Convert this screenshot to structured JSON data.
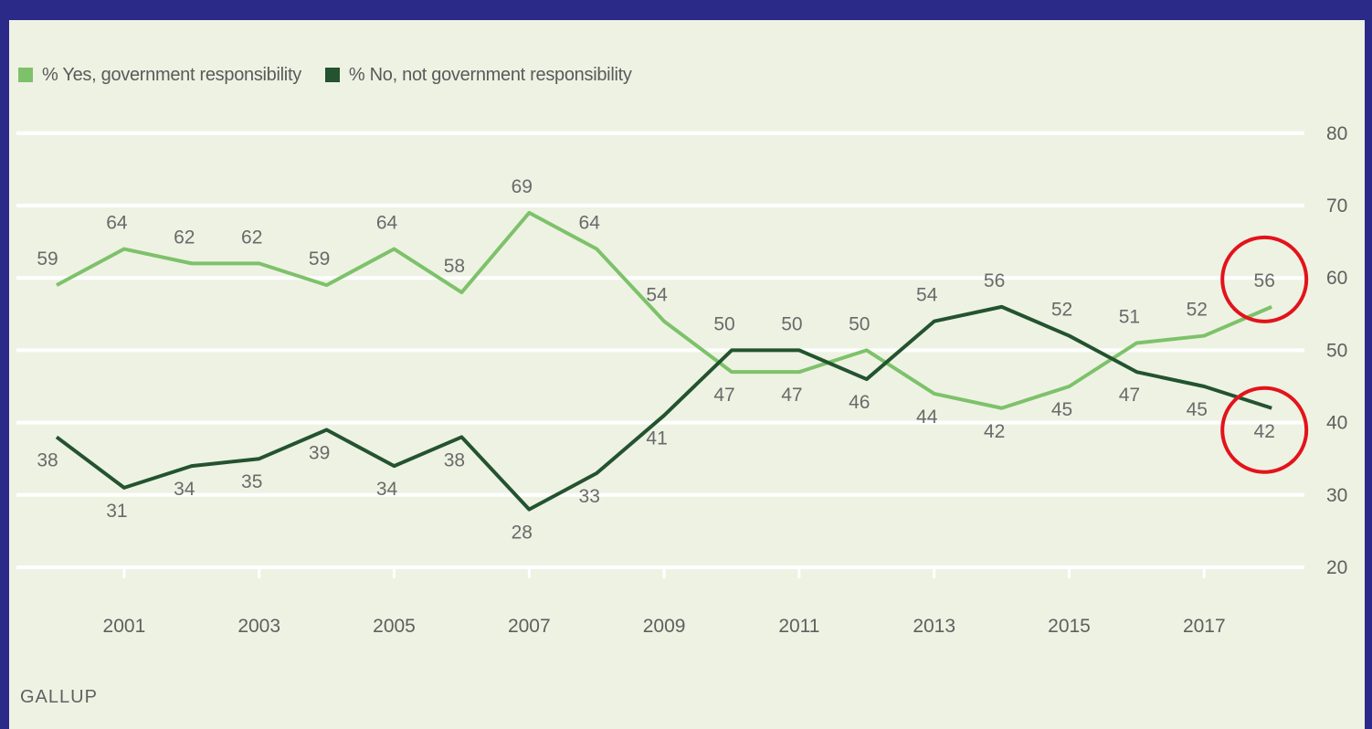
{
  "source_label": "GALLUP",
  "colors": {
    "background_frame": "#2b2a88",
    "panel": "#eef2e3",
    "gridline": "#ffffff",
    "yes_series": "#7dc26a",
    "no_series": "#23532f",
    "highlight_circle": "#e3131b",
    "label_text": "#6a6a6a"
  },
  "chart_data": {
    "type": "line",
    "xlabel": "",
    "ylabel": "",
    "ylim": [
      20,
      80
    ],
    "y_ticks": [
      80,
      70,
      60,
      50,
      40,
      30,
      20
    ],
    "y_axis_position": "right",
    "x_tick_labels": [
      "2001",
      "2003",
      "2005",
      "2007",
      "2009",
      "2011",
      "2013",
      "2015",
      "2017"
    ],
    "grid": true,
    "legend_position": "top-left",
    "x": [
      2000,
      2001,
      2002,
      2003,
      2004,
      2005,
      2006,
      2007,
      2008,
      2009,
      2010,
      2011,
      2012,
      2013,
      2014,
      2015,
      2016,
      2017,
      2018
    ],
    "series": [
      {
        "name": "% Yes, government responsibility",
        "color": "#7dc26a",
        "values": [
          59,
          64,
          62,
          62,
          59,
          64,
          58,
          69,
          64,
          54,
          47,
          47,
          50,
          44,
          42,
          45,
          51,
          52,
          56
        ]
      },
      {
        "name": "% No, not government responsibility",
        "color": "#23532f",
        "values": [
          38,
          31,
          34,
          35,
          39,
          34,
          38,
          28,
          33,
          41,
          50,
          50,
          46,
          54,
          56,
          52,
          47,
          45,
          42
        ]
      }
    ],
    "annotations": [
      {
        "kind": "circle",
        "series": 0,
        "x": 2018,
        "label": "56"
      },
      {
        "kind": "circle",
        "series": 1,
        "x": 2018,
        "label": "42"
      }
    ]
  }
}
